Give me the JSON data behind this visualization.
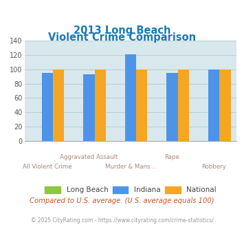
{
  "title_line1": "2013 Long Beach",
  "title_line2": "Violent Crime Comparison",
  "long_beach": [
    0,
    0,
    0,
    0,
    0
  ],
  "indiana": [
    95,
    93,
    121,
    95,
    100
  ],
  "national": [
    100,
    100,
    100,
    100,
    100
  ],
  "colors": {
    "long_beach": "#8dc63f",
    "indiana": "#4d94e8",
    "national": "#f5a623"
  },
  "ylim": [
    0,
    140
  ],
  "yticks": [
    0,
    20,
    40,
    60,
    80,
    100,
    120,
    140
  ],
  "background_color": "#d8e8ec",
  "grid_color": "#b8ced6",
  "title_color": "#1a7ab5",
  "axis_label_color": "#aa8877",
  "legend_labels": [
    "Long Beach",
    "Indiana",
    "National"
  ],
  "footer_text": "Compared to U.S. average. (U.S. average equals 100)",
  "copyright_text": "© 2025 CityRating.com - https://www.cityrating.com/crime-statistics/",
  "footer_color": "#cc5522",
  "copyright_color": "#999999",
  "bar_width": 0.27,
  "cat_labels_row1": [
    "",
    "Aggravated Assault",
    "",
    "Rape",
    ""
  ],
  "cat_labels_row2": [
    "All Violent Crime",
    "",
    "Murder & Mans...",
    "",
    "Robbery"
  ]
}
